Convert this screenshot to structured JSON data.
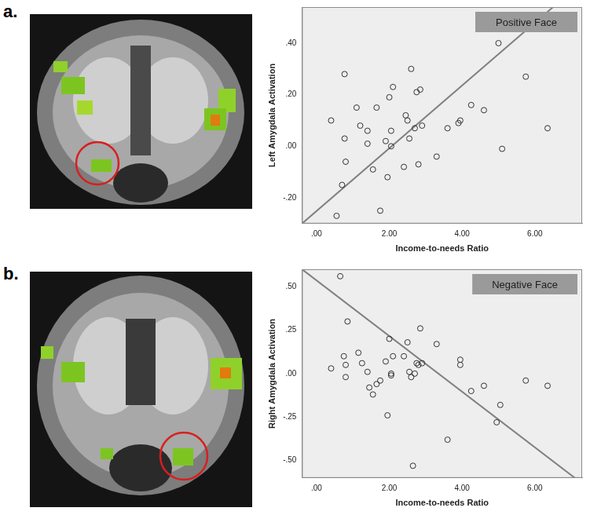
{
  "panel_labels": [
    "a.",
    "b."
  ],
  "chart_data": [
    {
      "type": "scatter",
      "annotation": "Positive Face",
      "x_label": "Income-to-needs Ratio",
      "y_label": "Left Amygdala Activation",
      "xlim": [
        -0.4,
        7.3
      ],
      "xticks": [
        {
          "value": 0,
          "label": ".00"
        },
        {
          "value": 2,
          "label": "2.00"
        },
        {
          "value": 4,
          "label": "4.00"
        },
        {
          "value": 6,
          "label": "6.00"
        }
      ],
      "ylim": [
        -0.3,
        0.54
      ],
      "yticks": [
        {
          "value": -0.2,
          "label": "-.20"
        },
        {
          "value": 0,
          "label": ".00"
        },
        {
          "value": 0.2,
          "label": ".20"
        },
        {
          "value": 0.4,
          "label": ".40"
        }
      ],
      "grid": false,
      "series": [
        {
          "type": "scatter",
          "marker": "open_circle",
          "color": "#333333",
          "x": [
            0.4,
            0.77,
            0.77,
            0.7,
            0.55,
            0.8,
            1.1,
            1.2,
            1.4,
            1.4,
            1.55,
            1.65,
            1.75,
            1.9,
            1.95,
            2.0,
            2.05,
            2.05,
            2.1,
            2.4,
            2.45,
            2.5,
            2.55,
            2.6,
            2.7,
            2.75,
            2.8,
            2.85,
            2.9,
            3.3,
            3.6,
            3.9,
            3.95,
            4.25,
            4.6,
            5.0,
            5.1,
            5.75,
            6.35
          ],
          "values": [
            0.1,
            0.28,
            0.03,
            -0.15,
            -0.27,
            -0.06,
            0.15,
            0.08,
            0.06,
            0.01,
            -0.09,
            0.15,
            -0.25,
            0.02,
            -0.12,
            0.19,
            0.06,
            0.0,
            0.23,
            -0.08,
            0.12,
            0.1,
            0.03,
            0.3,
            0.07,
            0.21,
            -0.07,
            0.22,
            0.08,
            -0.04,
            0.07,
            0.09,
            0.1,
            0.16,
            0.14,
            0.4,
            -0.01,
            0.27,
            0.07
          ]
        },
        {
          "type": "line",
          "line_style": "solid",
          "color": "#808080",
          "x": [
            -0.4,
            6.5
          ],
          "values": [
            -0.3,
            0.54
          ]
        }
      ]
    },
    {
      "type": "scatter",
      "annotation": "Negative Face",
      "x_label": "Income-to-needs Ratio",
      "y_label": "Right Amygdala Activation",
      "xlim": [
        -0.4,
        7.3
      ],
      "xticks": [
        {
          "value": 0,
          "label": ".00"
        },
        {
          "value": 2,
          "label": "2.00"
        },
        {
          "value": 4,
          "label": "4.00"
        },
        {
          "value": 6,
          "label": "6.00"
        }
      ],
      "ylim": [
        -0.6,
        0.6
      ],
      "yticks": [
        {
          "value": -0.5,
          "label": "-.50"
        },
        {
          "value": -0.25,
          "label": "-.25"
        },
        {
          "value": 0,
          "label": ".00"
        },
        {
          "value": 0.25,
          "label": ".25"
        },
        {
          "value": 0.5,
          "label": ".50"
        }
      ],
      "grid": false,
      "series": [
        {
          "type": "scatter",
          "marker": "open_circle",
          "color": "#333333",
          "x": [
            0.4,
            0.65,
            0.75,
            0.8,
            0.8,
            0.85,
            1.15,
            1.25,
            1.4,
            1.45,
            1.55,
            1.65,
            1.75,
            1.9,
            1.95,
            2.0,
            2.05,
            2.05,
            2.1,
            2.4,
            2.5,
            2.55,
            2.6,
            2.65,
            2.7,
            2.75,
            2.8,
            2.85,
            2.9,
            3.3,
            3.6,
            3.95,
            3.95,
            4.25,
            4.6,
            4.95,
            5.05,
            5.75,
            6.35
          ],
          "values": [
            0.03,
            0.56,
            0.1,
            0.05,
            -0.02,
            0.3,
            0.12,
            0.06,
            0.01,
            -0.08,
            -0.12,
            -0.06,
            -0.04,
            0.07,
            -0.24,
            0.2,
            0.0,
            -0.01,
            0.1,
            0.1,
            0.18,
            0.01,
            -0.02,
            -0.53,
            0.0,
            0.06,
            0.05,
            0.26,
            0.06,
            0.17,
            -0.38,
            0.08,
            0.05,
            -0.1,
            -0.07,
            -0.28,
            -0.18,
            -0.04,
            -0.07
          ]
        },
        {
          "type": "line",
          "line_style": "solid",
          "color": "#808080",
          "x": [
            -0.4,
            7.1
          ],
          "values": [
            0.6,
            -0.6
          ]
        }
      ]
    }
  ]
}
